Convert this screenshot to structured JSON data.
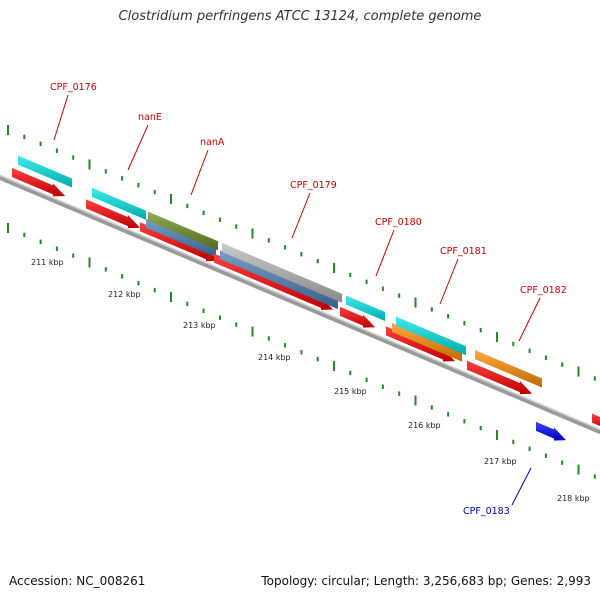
{
  "title": "Clostridium perfringens ATCC 13124, complete genome",
  "footer": {
    "accession": "Accession: NC_008261",
    "summary": "Topology: circular; Length: 3,256,683 bp; Genes: 2,993"
  },
  "axis": {
    "unit": "kbp",
    "ticks": [
      "211 kbp",
      "212 kbp",
      "213 kbp",
      "214 kbp",
      "215 kbp",
      "216 kbp",
      "217 kbp",
      "218 kbp"
    ]
  },
  "genes": [
    {
      "name": "CPF_0176",
      "label_color": "#cc0000"
    },
    {
      "name": "nanE",
      "label_color": "#cc0000"
    },
    {
      "name": "nanA",
      "label_color": "#cc0000"
    },
    {
      "name": "CPF_0179",
      "label_color": "#cc0000"
    },
    {
      "name": "CPF_0180",
      "label_color": "#cc0000"
    },
    {
      "name": "CPF_0181",
      "label_color": "#cc0000"
    },
    {
      "name": "CPF_0182",
      "label_color": "#cc0000"
    },
    {
      "name": "CPF_0183",
      "label_color": "#0000cc"
    }
  ],
  "colors": {
    "cds": "#ff0000",
    "cyan": "#00e5e5",
    "steel": "#4a7fb5",
    "olive": "#6b8e23",
    "gray": "#b8b8b8",
    "orange": "#ff8c00",
    "blue": "#0000ff",
    "backbone": "#808080",
    "ticks": "#228b22"
  }
}
